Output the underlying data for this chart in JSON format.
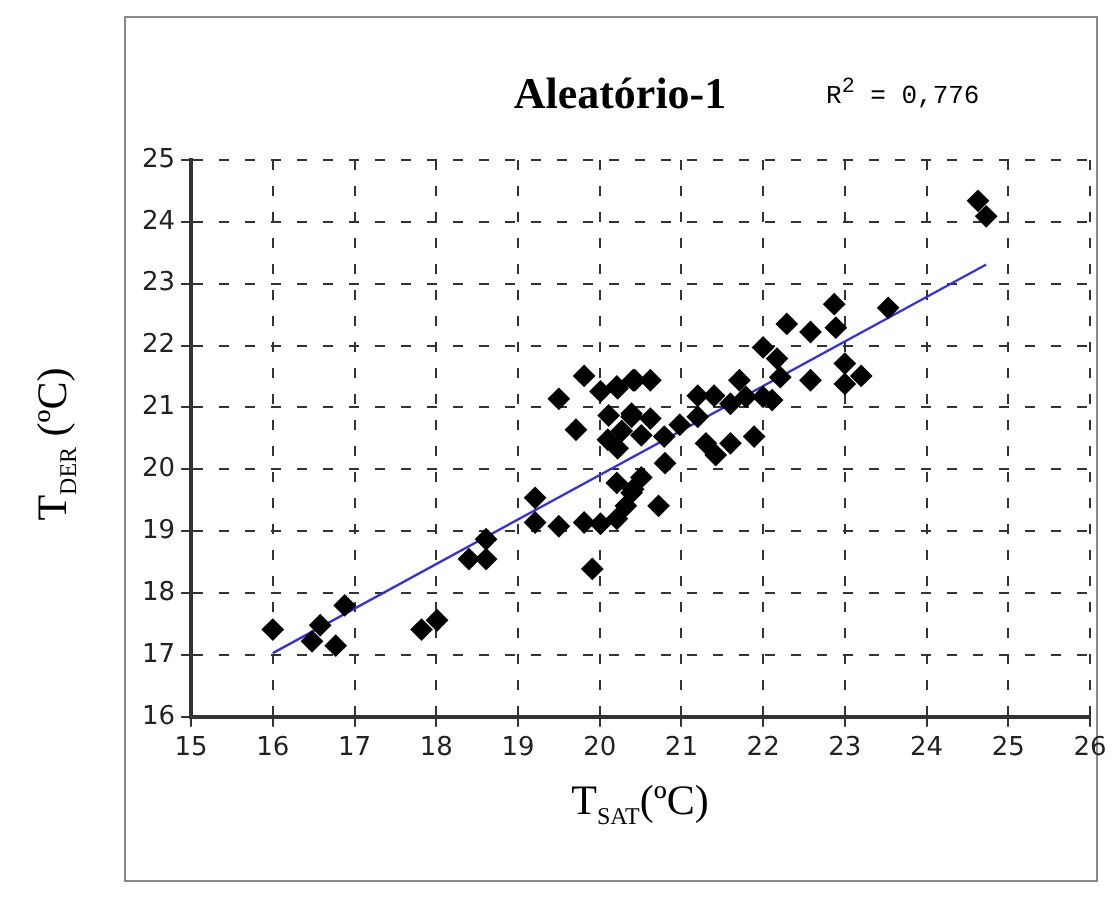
{
  "chart_data": {
    "type": "scatter",
    "title": "Aleatório-1",
    "xlabel": "T$_{SAT}$(ºC)",
    "ylabel": "T$_{DER}$ (ºC)",
    "annotations": [
      "R$^{2}$ = 0,776"
    ],
    "xlim": [
      15,
      26
    ],
    "xticks": [
      15,
      16,
      17,
      18,
      19,
      20,
      21,
      22,
      23,
      24,
      25,
      26
    ],
    "ylim": [
      16,
      25
    ],
    "yticks": [
      16,
      17,
      18,
      19,
      20,
      21,
      22,
      23,
      24,
      25
    ],
    "grid": true,
    "marker": "diamond",
    "legend": false,
    "series": [
      {
        "color": "#000000",
        "x": [
          16.0,
          16.48,
          16.58,
          16.77,
          16.88,
          17.82,
          18.01,
          18.4,
          18.61,
          18.61,
          19.21,
          19.21,
          19.5,
          19.5,
          19.71,
          19.81,
          19.81,
          19.91,
          20.01,
          20.01,
          20.11,
          20.21,
          20.21,
          20.21,
          20.1,
          20.22,
          20.41,
          20.39,
          20.41,
          20.32,
          20.39,
          20.51,
          20.72,
          20.8,
          20.22,
          20.43,
          20.62,
          20.39,
          20.62,
          20.51,
          20.27,
          20.79,
          20.98,
          21.2,
          21.2,
          21.4,
          21.3,
          21.42,
          21.6,
          21.6,
          21.71,
          21.79,
          21.89,
          22.0,
          22.0,
          22.11,
          22.17,
          22.21,
          22.29,
          22.58,
          22.58,
          22.87,
          22.89,
          23.0,
          23.0,
          23.2,
          23.53,
          24.63,
          24.73
        ],
        "values": [
          17.41,
          17.22,
          17.48,
          17.15,
          17.8,
          17.41,
          17.56,
          18.55,
          18.55,
          18.87,
          19.54,
          19.14,
          19.08,
          21.14,
          20.64,
          21.51,
          19.14,
          18.39,
          19.12,
          21.26,
          20.87,
          21.34,
          19.78,
          19.2,
          20.48,
          20.34,
          21.44,
          20.9,
          19.68,
          19.41,
          19.62,
          19.87,
          19.41,
          20.1,
          21.31,
          21.44,
          21.44,
          20.85,
          20.82,
          20.55,
          20.62,
          20.53,
          20.72,
          21.19,
          20.85,
          21.19,
          20.42,
          20.23,
          20.42,
          21.06,
          21.44,
          21.17,
          20.53,
          21.97,
          21.17,
          21.12,
          21.79,
          21.49,
          22.35,
          22.22,
          21.44,
          22.67,
          22.29,
          21.71,
          21.38,
          21.51,
          22.61,
          24.34,
          24.09
        ]
      },
      {
        "type": "line",
        "color": "#3333cc",
        "marker": "none",
        "x": [
          16.0,
          24.73
        ],
        "values": [
          17.03,
          23.31
        ]
      }
    ]
  }
}
